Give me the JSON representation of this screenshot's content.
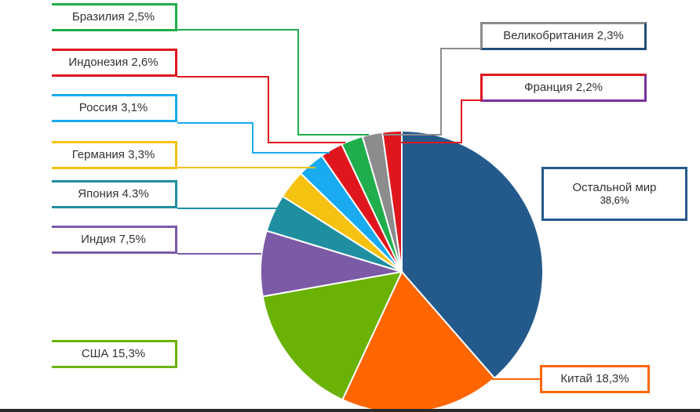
{
  "chart_data": {
    "type": "pie",
    "slices": [
      {
        "label": "Остальной мир",
        "value": 38.6,
        "value_label": "38,6%",
        "color": "#245a8b"
      },
      {
        "label": "Китай",
        "value": 18.3,
        "value_label": "18,3%",
        "color": "#ff6600"
      },
      {
        "label": "США",
        "value": 15.3,
        "value_label": "15,3%",
        "color": "#6ab204"
      },
      {
        "label": "Индия",
        "value": 7.5,
        "value_label": "7,5%",
        "color": "#7b5aa6"
      },
      {
        "label": "Япония",
        "value": 4.3,
        "value_label": "4.3%",
        "color": "#1f8fa0"
      },
      {
        "label": "Германия",
        "value": 3.3,
        "value_label": "3,3%",
        "color": "#f5c211"
      },
      {
        "label": "Россия",
        "value": 3.1,
        "value_label": "3,1%",
        "color": "#19aaf0"
      },
      {
        "label": "Индонезия",
        "value": 2.6,
        "value_label": "2,6%",
        "color": "#e0161e"
      },
      {
        "label": "Бразилия",
        "value": 2.5,
        "value_label": "2,5%",
        "color": "#1fae4b"
      },
      {
        "label": "Великобритания",
        "value": 2.3,
        "value_label": "2,3%",
        "color": "#8c8c8c"
      },
      {
        "label": "Франция",
        "value": 2.2,
        "value_label": "2,2%",
        "color": "#e0161e"
      }
    ],
    "label_border_colors": {
      "Остальной мир": "#245a8b",
      "Китай": "#ff6600",
      "США": "#6ab204",
      "Индия": "#7b5aa6",
      "Япония": "#1f8fa0",
      "Германия": "#f5c211",
      "Россия": "#19aaf0",
      "Индонезия": "#e0161e",
      "Бразилия": "#1fae4b",
      "Великобритания": "#8c8c8c",
      "Франция": "#e0161e"
    },
    "label_underline_colors": {
      "Великобритания": "#1f4e79",
      "Франция": "#7b2fa0"
    },
    "start_angle_deg": 0,
    "direction": "clockwise"
  }
}
